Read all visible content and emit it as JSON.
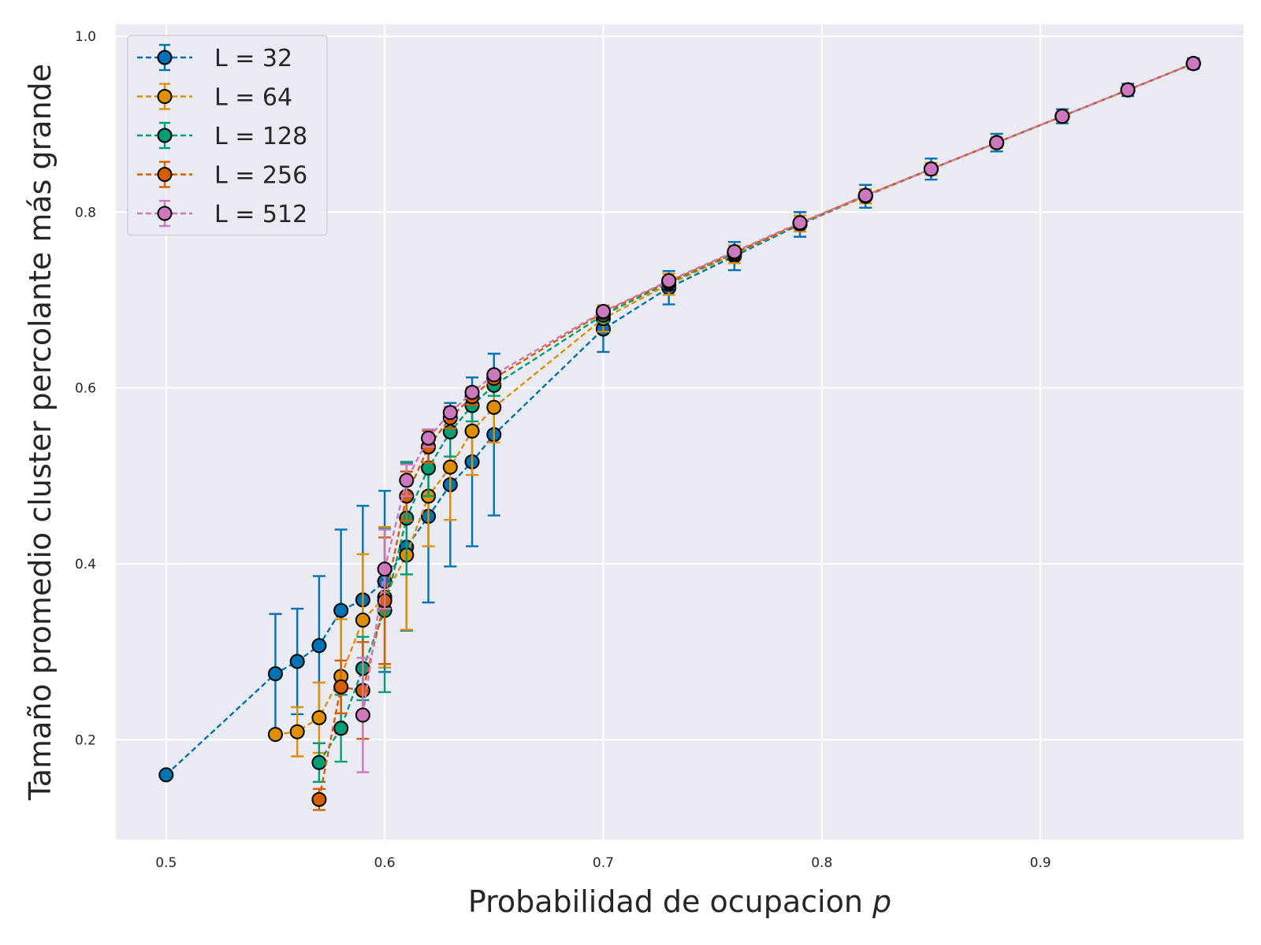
{
  "chart_data": {
    "type": "line",
    "title": "",
    "xlabel": "Probabilidad de ocupacion",
    "xlabel_var": "p",
    "ylabel": "Tamaño promedio cluster percolante más grande",
    "xlim": [
      0.477,
      0.993
    ],
    "ylim": [
      0.0865,
      1.0135
    ],
    "xticks": [
      0.5,
      0.6,
      0.7,
      0.8,
      0.9
    ],
    "xtick_labels": [
      "0.5",
      "0.6",
      "0.7",
      "0.8",
      "0.9"
    ],
    "yticks": [
      0.2,
      0.4,
      0.6,
      0.8,
      1.0
    ],
    "ytick_labels": [
      "0.2",
      "0.4",
      "0.6",
      "0.8",
      "1.0"
    ],
    "grid": true,
    "legend_position": "top-left",
    "series": [
      {
        "name": "L = 32",
        "color": "#0173b2",
        "x": [
          0.5,
          0.55,
          0.56,
          0.57,
          0.58,
          0.59,
          0.6,
          0.61,
          0.62,
          0.63,
          0.64,
          0.65,
          0.7,
          0.73,
          0.76,
          0.79,
          0.82,
          0.85,
          0.88,
          0.91,
          0.94,
          0.97
        ],
        "y": [
          0.16,
          0.275,
          0.289,
          0.307,
          0.347,
          0.359,
          0.38,
          0.419,
          0.454,
          0.49,
          0.516,
          0.547,
          0.667,
          0.714,
          0.75,
          0.786,
          0.818,
          0.849,
          0.879,
          0.909,
          0.939,
          0.969
        ],
        "err": [
          0.0,
          0.068,
          0.06,
          0.079,
          0.092,
          0.107,
          0.103,
          0.095,
          0.098,
          0.093,
          0.096,
          0.092,
          0.026,
          0.019,
          0.016,
          0.014,
          0.013,
          0.012,
          0.01,
          0.008,
          0.007,
          0.006
        ]
      },
      {
        "name": "L = 64",
        "color": "#de8f05",
        "x": [
          0.55,
          0.56,
          0.57,
          0.58,
          0.59,
          0.6,
          0.61,
          0.62,
          0.63,
          0.64,
          0.65,
          0.7,
          0.73,
          0.76,
          0.79,
          0.82,
          0.85,
          0.88,
          0.91,
          0.94,
          0.97
        ],
        "y": [
          0.206,
          0.209,
          0.225,
          0.272,
          0.336,
          0.362,
          0.41,
          0.477,
          0.51,
          0.551,
          0.578,
          0.679,
          0.718,
          0.752,
          0.787,
          0.818,
          0.849,
          0.879,
          0.909,
          0.939,
          0.969
        ],
        "err": [
          0.0,
          0.028,
          0.04,
          0.065,
          0.075,
          0.08,
          0.085,
          0.057,
          0.06,
          0.05,
          0.04,
          0.015,
          0.012,
          0.01,
          0.009,
          0.008,
          0.007,
          0.006,
          0.005,
          0.004,
          0.004
        ]
      },
      {
        "name": "L = 128",
        "color": "#029e73",
        "x": [
          0.57,
          0.58,
          0.59,
          0.6,
          0.61,
          0.62,
          0.63,
          0.64,
          0.65,
          0.7,
          0.73,
          0.76,
          0.79,
          0.82,
          0.85,
          0.88,
          0.91,
          0.94,
          0.97
        ],
        "y": [
          0.174,
          0.213,
          0.281,
          0.347,
          0.452,
          0.509,
          0.55,
          0.58,
          0.603,
          0.683,
          0.72,
          0.753,
          0.787,
          0.819,
          0.849,
          0.879,
          0.909,
          0.939,
          0.969
        ],
        "err": [
          0.022,
          0.038,
          0.036,
          0.093,
          0.064,
          0.032,
          0.028,
          0.018,
          0.012,
          0.008,
          0.006,
          0.005,
          0.005,
          0.004,
          0.004,
          0.003,
          0.003,
          0.002,
          0.002
        ]
      },
      {
        "name": "L = 256",
        "color": "#d55e00",
        "x": [
          0.57,
          0.58,
          0.59,
          0.6,
          0.61,
          0.62,
          0.63,
          0.64,
          0.65,
          0.7,
          0.73,
          0.76,
          0.79,
          0.82,
          0.85,
          0.88,
          0.91,
          0.94,
          0.97
        ],
        "y": [
          0.132,
          0.26,
          0.256,
          0.358,
          0.477,
          0.533,
          0.566,
          0.59,
          0.611,
          0.686,
          0.721,
          0.754,
          0.787,
          0.819,
          0.849,
          0.879,
          0.909,
          0.939,
          0.969
        ],
        "err": [
          0.012,
          0.03,
          0.055,
          0.072,
          0.028,
          0.018,
          0.012,
          0.009,
          0.007,
          0.004,
          0.004,
          0.003,
          0.003,
          0.002,
          0.002,
          0.002,
          0.002,
          0.001,
          0.001
        ]
      },
      {
        "name": "L = 512",
        "color": "#cc78bc",
        "x": [
          0.59,
          0.6,
          0.61,
          0.62,
          0.63,
          0.64,
          0.65,
          0.7,
          0.73,
          0.76,
          0.79,
          0.82,
          0.85,
          0.88,
          0.91,
          0.94,
          0.97
        ],
        "y": [
          0.228,
          0.394,
          0.495,
          0.543,
          0.572,
          0.595,
          0.615,
          0.687,
          0.722,
          0.755,
          0.788,
          0.819,
          0.849,
          0.879,
          0.909,
          0.939,
          0.969
        ],
        "err": [
          0.065,
          0.045,
          0.018,
          0.01,
          0.007,
          0.005,
          0.004,
          0.002,
          0.002,
          0.002,
          0.002,
          0.001,
          0.001,
          0.001,
          0.001,
          0.001,
          0.001
        ]
      }
    ]
  }
}
